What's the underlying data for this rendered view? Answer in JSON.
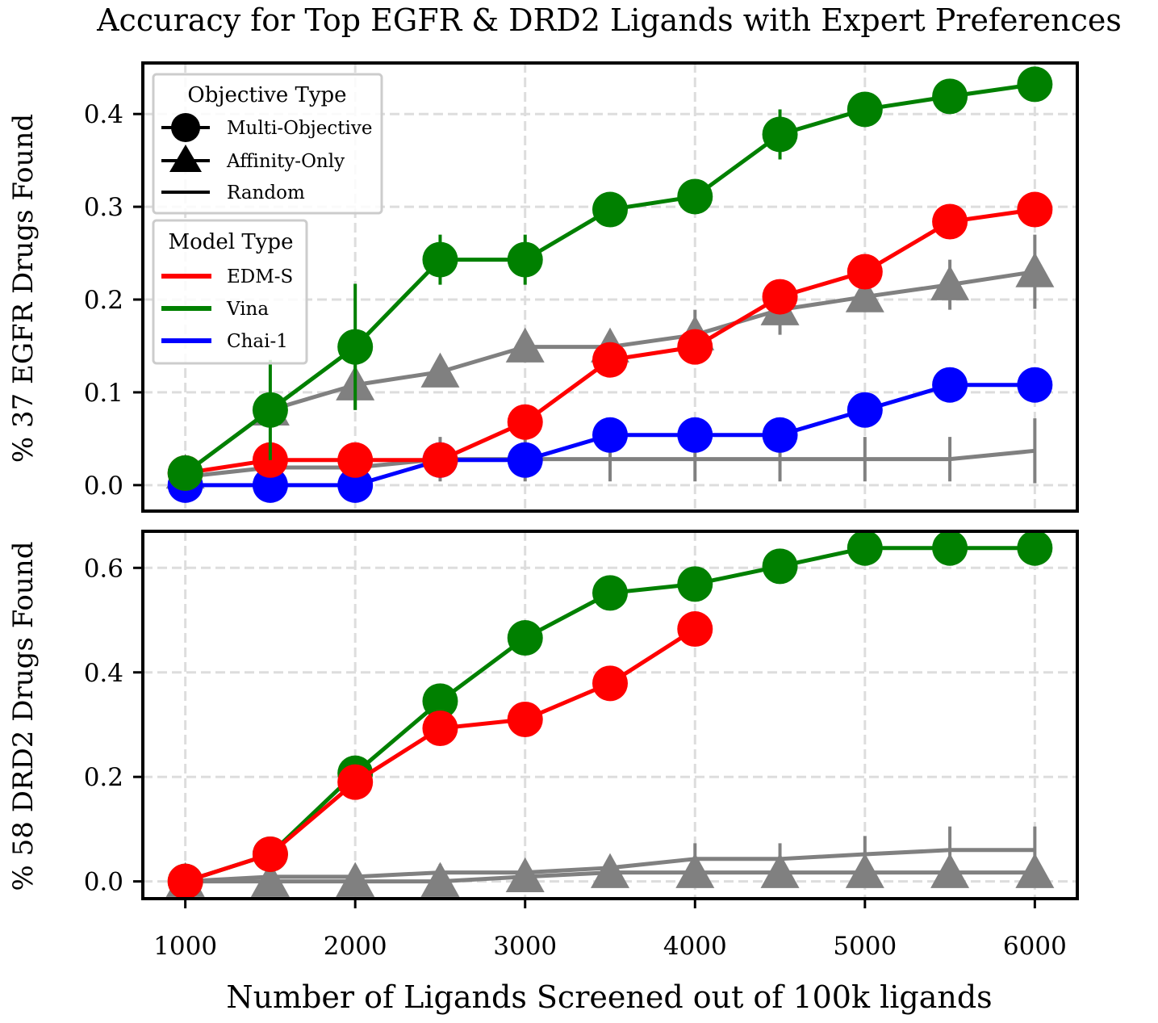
{
  "chart_data": {
    "type": "line",
    "title": "Accuracy for Top EGFR & DRD2 Ligands with Expert Preferences",
    "xlabel": "Number of Ligands Screened out of 100k ligands",
    "x": [
      1000,
      1500,
      2000,
      2500,
      3000,
      3500,
      4000,
      4500,
      5000,
      5500,
      6000
    ],
    "x_ticks": [
      1000,
      2000,
      3000,
      4000,
      5000,
      6000
    ],
    "xlim": [
      750,
      6250
    ],
    "grid": true,
    "colors": {
      "EDM-S": "#ff0000",
      "Vina": "#008000",
      "Chai-1": "#0000ff",
      "Random": "#808080"
    },
    "legend_objective": {
      "title": "Objective Type",
      "entries": [
        "Multi-Objective",
        "Affinity-Only",
        "Random"
      ],
      "placement": "upper-left"
    },
    "legend_model": {
      "title": "Model Type",
      "entries": [
        "EDM-S",
        "Vina",
        "Chai-1"
      ],
      "placement": "upper-left"
    },
    "panels": [
      {
        "ylabel": "% 37 EGFR Drugs Found",
        "ylim": [
          -0.028,
          0.455
        ],
        "y_ticks": [
          0.0,
          0.1,
          0.2,
          0.3,
          0.4
        ],
        "y_tick_labels": [
          "0.0",
          "0.1",
          "0.2",
          "0.3",
          "0.4"
        ],
        "series": [
          {
            "name": "Random",
            "color": "#808080",
            "marker": "none",
            "values": [
              0.009,
              0.019,
              0.019,
              0.028,
              0.028,
              0.028,
              0.028,
              0.028,
              0.028,
              0.028,
              0.037
            ],
            "errors": [
              0.009,
              0.018,
              0.018,
              0.024,
              0.024,
              0.024,
              0.024,
              0.024,
              0.024,
              0.024,
              0.035
            ]
          },
          {
            "name": "Affinity-Only",
            "color": "#808080",
            "marker": "triangle",
            "values": [
              0.013,
              0.081,
              0.108,
              0.122,
              0.149,
              0.149,
              0.162,
              0.189,
              0.203,
              0.216,
              0.23
            ],
            "errors": [
              0.0,
              0.0,
              0.027,
              0.0,
              0.0,
              0.0,
              0.027,
              0.027,
              0.0,
              0.027,
              0.04
            ]
          },
          {
            "name": "Chai-1",
            "color": "#0000ff",
            "marker": "circle",
            "values": [
              0.0,
              0.0,
              0.0,
              0.027,
              0.027,
              0.054,
              0.054,
              0.054,
              0.081,
              0.108,
              0.108
            ],
            "errors": [
              0,
              0,
              0,
              0,
              0,
              0,
              0,
              0,
              0,
              0,
              0
            ]
          },
          {
            "name": "EDM-S",
            "color": "#ff0000",
            "marker": "circle",
            "values": [
              0.013,
              0.027,
              0.027,
              0.027,
              0.068,
              0.135,
              0.149,
              0.203,
              0.23,
              0.284,
              0.297
            ],
            "errors": [
              0,
              0,
              0,
              0,
              0,
              0,
              0,
              0,
              0,
              0,
              0
            ]
          },
          {
            "name": "Vina",
            "color": "#008000",
            "marker": "circle",
            "values": [
              0.013,
              0.081,
              0.149,
              0.243,
              0.243,
              0.297,
              0.311,
              0.378,
              0.405,
              0.419,
              0.432
            ],
            "errors": [
              0.0,
              0.054,
              0.068,
              0.027,
              0.027,
              0.0,
              0.0,
              0.027,
              0.0,
              0.0,
              0.0
            ]
          }
        ]
      },
      {
        "ylabel": "% 58 DRD2 Drugs Found",
        "ylim": [
          -0.033,
          0.67
        ],
        "y_ticks": [
          0.0,
          0.2,
          0.4,
          0.6
        ],
        "y_tick_labels": [
          "0.0",
          "0.2",
          "0.4",
          "0.6"
        ],
        "series": [
          {
            "name": "Random",
            "color": "#808080",
            "marker": "none",
            "values": [
              0.0,
              0.009,
              0.009,
              0.017,
              0.017,
              0.026,
              0.043,
              0.043,
              0.052,
              0.06,
              0.06
            ],
            "errors": [
              0.0,
              0.008,
              0.008,
              0.016,
              0.016,
              0.02,
              0.03,
              0.03,
              0.035,
              0.045,
              0.045
            ]
          },
          {
            "name": "Affinity-Only",
            "color": "#808080",
            "marker": "triangle",
            "values": [
              0.0,
              0.0,
              0.0,
              0.0,
              0.009,
              0.017,
              0.017,
              0.017,
              0.017,
              0.017,
              0.017
            ],
            "errors": [
              0,
              0,
              0,
              0,
              0,
              0,
              0,
              0,
              0,
              0,
              0
            ]
          },
          {
            "name": "Vina",
            "color": "#008000",
            "marker": "circle",
            "values": [
              0.0,
              0.052,
              0.207,
              0.345,
              0.466,
              0.552,
              0.569,
              0.603,
              0.638,
              0.638,
              0.638
            ],
            "errors": [
              0,
              0,
              0,
              0,
              0,
              0,
              0,
              0,
              0,
              0,
              0
            ]
          },
          {
            "name": "EDM-S",
            "color": "#ff0000",
            "marker": "circle",
            "values": [
              0.0,
              0.052,
              0.19,
              0.293,
              0.31,
              0.379,
              0.483,
              null,
              null,
              null,
              null
            ],
            "errors": [
              0,
              0,
              0,
              0,
              0,
              0,
              0,
              0,
              0,
              0,
              0
            ]
          }
        ]
      }
    ]
  }
}
